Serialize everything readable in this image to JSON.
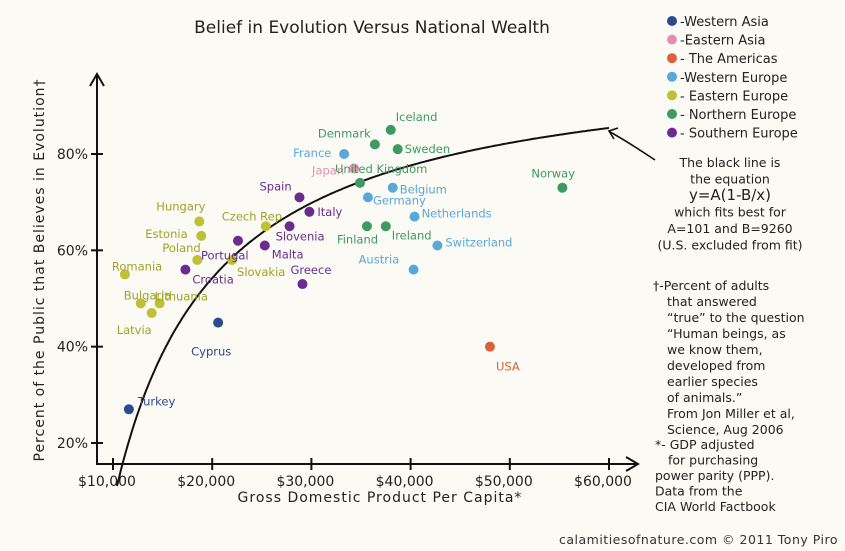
{
  "colors": {
    "Western Asia": "#2c4a8c",
    "Eastern Asia": "#e58fb0",
    "The Americas": "#d9603a",
    "Western Europe": "#5aa8d8",
    "Eastern Europe": "#bcc234",
    "Northern Europe": "#3e9a63",
    "Southern Europe": "#6b2c91",
    "curve": "#111111",
    "label_eastern_europe": "#9fa326"
  },
  "legend": {
    "items": [
      {
        "label": "-Western Asia",
        "region": "Western Asia"
      },
      {
        "label": "-Eastern Asia",
        "region": "Eastern Asia"
      },
      {
        "label": "- The Americas",
        "region": "The Americas"
      },
      {
        "label": "-Western Europe",
        "region": "Western Europe"
      },
      {
        "label": "- Eastern Europe",
        "region": "Eastern Europe"
      },
      {
        "label": "- Northern Europe",
        "region": "Northern Europe"
      },
      {
        "label": "- Southern Europe",
        "region": "Southern Europe"
      }
    ]
  },
  "equation_note": {
    "lines": [
      "The black line is",
      "the equation",
      "y=A(1-B/x)",
      "which fits best for",
      "A=101 and B=9260",
      "(U.S. excluded from fit)"
    ]
  },
  "dagger_note": {
    "lines": [
      "†-Percent of adults",
      "that answered",
      "“true” to the question",
      "“Human beings, as",
      "we know them,",
      "developed from",
      "earlier species",
      "of animals.”",
      "From Jon Miller et al,",
      "Science, Aug 2006"
    ]
  },
  "asterisk_note": {
    "lines": [
      "*- GDP adjusted",
      "for purchasing",
      "power parity (PPP).",
      "Data from the",
      "CIA World Factbook"
    ]
  },
  "credit": "calamitiesofnature.com © 2011 Tony Piro",
  "chart_data": {
    "type": "scatter",
    "title": "Belief in Evolution Versus National Wealth",
    "xlabel": "Gross Domestic Product Per Capita*",
    "ylabel": "Percent of the Public that Believes in Evolution†",
    "xlim": [
      10000,
      63000
    ],
    "ylim": [
      18,
      90
    ],
    "x_ticks": [
      10000,
      20000,
      30000,
      40000,
      50000,
      60000
    ],
    "x_tick_labels": [
      "$10,000",
      "$20,000",
      "$30,000",
      "$40,000",
      "$50,000",
      "$60,000"
    ],
    "y_ticks": [
      20,
      40,
      60,
      80
    ],
    "y_tick_labels": [
      "20%",
      "40%",
      "60%",
      "80%"
    ],
    "grid": false,
    "legend_position": "top-right",
    "fit": {
      "equation": "y=A(1-B/x)",
      "A": 101,
      "B": 9260
    },
    "points": [
      {
        "name": "Turkey",
        "region": "Western Asia",
        "x": 11600,
        "y": 27
      },
      {
        "name": "Cyprus",
        "region": "Western Asia",
        "x": 20600,
        "y": 45
      },
      {
        "name": "Japan",
        "region": "Eastern Asia",
        "x": 34300,
        "y": 77
      },
      {
        "name": "USA",
        "region": "The Americas",
        "x": 48000,
        "y": 40
      },
      {
        "name": "France",
        "region": "Western Europe",
        "x": 33300,
        "y": 80
      },
      {
        "name": "Belgium",
        "region": "Western Europe",
        "x": 38200,
        "y": 73
      },
      {
        "name": "Germany",
        "region": "Western Europe",
        "x": 35700,
        "y": 71
      },
      {
        "name": "Netherlands",
        "region": "Western Europe",
        "x": 40400,
        "y": 67
      },
      {
        "name": "Switzerland",
        "region": "Western Europe",
        "x": 42700,
        "y": 61
      },
      {
        "name": "Austria",
        "region": "Western Europe",
        "x": 40300,
        "y": 56
      },
      {
        "name": "Hungary",
        "region": "Eastern Europe",
        "x": 18700,
        "y": 66
      },
      {
        "name": "Estonia",
        "region": "Eastern Europe",
        "x": 18900,
        "y": 63
      },
      {
        "name": "Czech Rep.",
        "region": "Eastern Europe",
        "x": 25400,
        "y": 65
      },
      {
        "name": "Poland",
        "region": "Eastern Europe",
        "x": 18500,
        "y": 58
      },
      {
        "name": "Slovakia",
        "region": "Eastern Europe",
        "x": 22000,
        "y": 58
      },
      {
        "name": "Romania",
        "region": "Eastern Europe",
        "x": 11200,
        "y": 55
      },
      {
        "name": "Bulgaria",
        "region": "Eastern Europe",
        "x": 12800,
        "y": 49
      },
      {
        "name": "Lithuania",
        "region": "Eastern Europe",
        "x": 14700,
        "y": 49
      },
      {
        "name": "Latvia",
        "region": "Eastern Europe",
        "x": 13900,
        "y": 47
      },
      {
        "name": "Iceland",
        "region": "Northern Europe",
        "x": 38000,
        "y": 85
      },
      {
        "name": "Denmark",
        "region": "Northern Europe",
        "x": 36400,
        "y": 82
      },
      {
        "name": "Sweden",
        "region": "Northern Europe",
        "x": 38700,
        "y": 81
      },
      {
        "name": "United Kingdom",
        "region": "Northern Europe",
        "x": 34900,
        "y": 74
      },
      {
        "name": "Finland",
        "region": "Northern Europe",
        "x": 35600,
        "y": 65
      },
      {
        "name": "Ireland",
        "region": "Northern Europe",
        "x": 37500,
        "y": 65
      },
      {
        "name": "Norway",
        "region": "Northern Europe",
        "x": 55300,
        "y": 73
      },
      {
        "name": "Spain",
        "region": "Southern Europe",
        "x": 28800,
        "y": 71
      },
      {
        "name": "Italy",
        "region": "Southern Europe",
        "x": 29800,
        "y": 68
      },
      {
        "name": "Slovenia",
        "region": "Southern Europe",
        "x": 27800,
        "y": 65
      },
      {
        "name": "Portugal",
        "region": "Southern Europe",
        "x": 22600,
        "y": 62
      },
      {
        "name": "Malta",
        "region": "Southern Europe",
        "x": 25300,
        "y": 61
      },
      {
        "name": "Croatia",
        "region": "Southern Europe",
        "x": 17300,
        "y": 56
      },
      {
        "name": "Greece",
        "region": "Southern Europe",
        "x": 29100,
        "y": 53
      }
    ]
  }
}
